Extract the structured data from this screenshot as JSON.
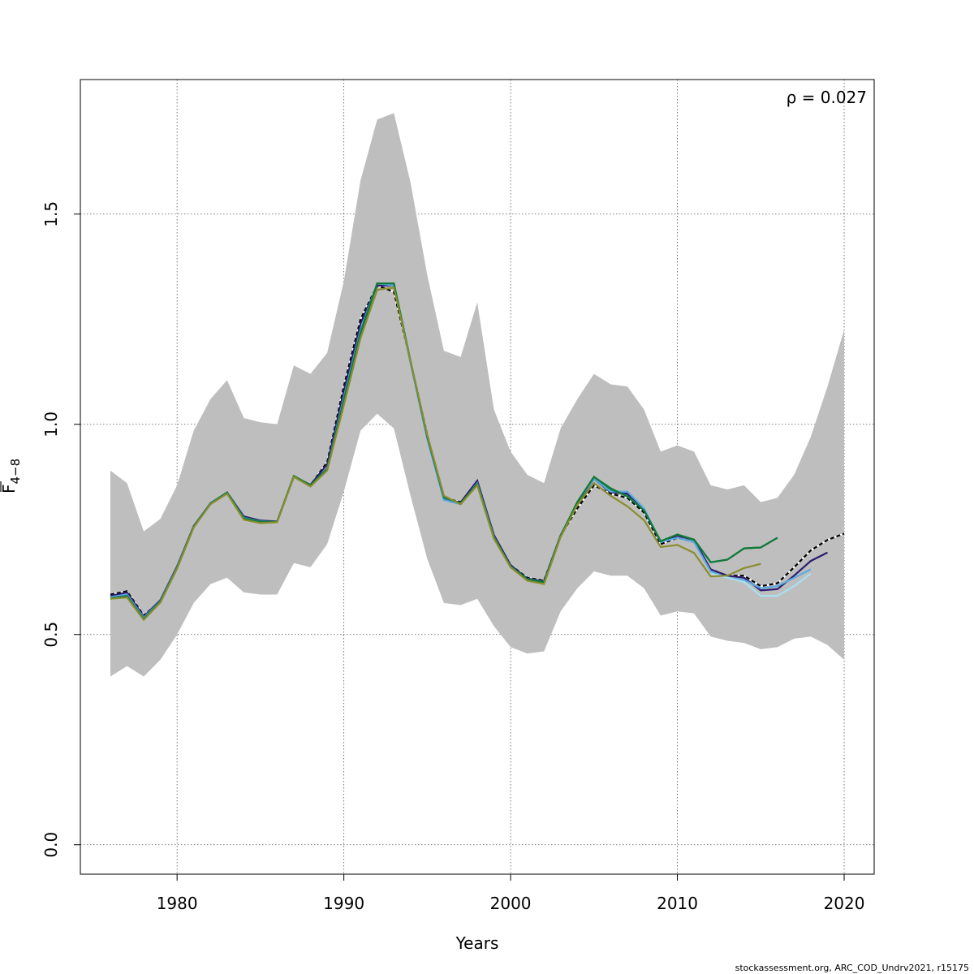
{
  "chart_data": {
    "type": "line",
    "xlabel": "Years",
    "ylabel": {
      "base": "F",
      "subscript": "4−8"
    },
    "annotation": "ρ = 0.027",
    "xlim": [
      1974.2,
      2021.8
    ],
    "ylim": [
      -0.07,
      1.82
    ],
    "x_ticks": [
      1980,
      1990,
      2000,
      2010,
      2020
    ],
    "y_ticks": [
      0.0,
      0.5,
      1.0,
      1.5
    ],
    "y_tick_labels": [
      "0.0",
      "0.5",
      "1.0",
      "1.5"
    ],
    "grid": true,
    "band_color": "#bebebe",
    "band": {
      "x": [
        1976,
        1977,
        1978,
        1979,
        1980,
        1981,
        1982,
        1983,
        1984,
        1985,
        1986,
        1987,
        1988,
        1989,
        1990,
        1991,
        1992,
        1993,
        1994,
        1995,
        1996,
        1997,
        1998,
        1999,
        2000,
        2001,
        2002,
        2003,
        2004,
        2005,
        2006,
        2007,
        2008,
        2009,
        2010,
        2011,
        2012,
        2013,
        2014,
        2015,
        2016,
        2017,
        2018,
        2019,
        2020
      ],
      "lower": [
        0.4,
        0.425,
        0.4,
        0.44,
        0.5,
        0.575,
        0.62,
        0.635,
        0.6,
        0.595,
        0.595,
        0.67,
        0.66,
        0.715,
        0.84,
        0.985,
        1.025,
        0.99,
        0.83,
        0.68,
        0.575,
        0.57,
        0.585,
        0.52,
        0.47,
        0.455,
        0.46,
        0.555,
        0.61,
        0.65,
        0.64,
        0.64,
        0.61,
        0.545,
        0.555,
        0.55,
        0.495,
        0.485,
        0.48,
        0.465,
        0.47,
        0.49,
        0.495,
        0.475,
        0.44
      ],
      "upper": [
        0.89,
        0.86,
        0.745,
        0.775,
        0.855,
        0.985,
        1.06,
        1.105,
        1.015,
        1.005,
        1.0,
        1.14,
        1.12,
        1.17,
        1.34,
        1.58,
        1.725,
        1.74,
        1.575,
        1.355,
        1.175,
        1.16,
        1.29,
        1.035,
        0.935,
        0.88,
        0.86,
        0.99,
        1.06,
        1.12,
        1.095,
        1.09,
        1.035,
        0.935,
        0.95,
        0.935,
        0.855,
        0.845,
        0.855,
        0.815,
        0.825,
        0.88,
        0.97,
        1.09,
        1.225
      ]
    },
    "series": [
      {
        "color": "#000000",
        "dashed": true,
        "x": [
          1976,
          1977,
          1978,
          1979,
          1980,
          1981,
          1982,
          1983,
          1984,
          1985,
          1986,
          1987,
          1988,
          1989,
          1990,
          1991,
          1992,
          1993,
          1994,
          1995,
          1996,
          1997,
          1998,
          1999,
          2000,
          2001,
          2002,
          2003,
          2004,
          2005,
          2006,
          2007,
          2008,
          2009,
          2010,
          2011,
          2012,
          2013,
          2014,
          2015,
          2016,
          2017,
          2018,
          2019,
          2020
        ],
        "y": [
          0.595,
          0.603,
          0.545,
          0.58,
          0.66,
          0.757,
          0.81,
          0.838,
          0.78,
          0.77,
          0.768,
          0.875,
          0.855,
          0.91,
          1.09,
          1.25,
          1.33,
          1.315,
          1.15,
          0.975,
          0.825,
          0.815,
          0.86,
          0.735,
          0.665,
          0.635,
          0.628,
          0.735,
          0.8,
          0.855,
          0.835,
          0.825,
          0.79,
          0.715,
          0.73,
          0.72,
          0.655,
          0.64,
          0.64,
          0.615,
          0.622,
          0.66,
          0.7,
          0.725,
          0.74
        ]
      },
      {
        "color": "#2c1b6e",
        "dashed": false,
        "x": [
          1976,
          1977,
          1978,
          1979,
          1980,
          1981,
          1982,
          1983,
          1984,
          1985,
          1986,
          1987,
          1988,
          1989,
          1990,
          1991,
          1992,
          1993,
          1994,
          1995,
          1996,
          1997,
          1998,
          1999,
          2000,
          2001,
          2002,
          2003,
          2004,
          2005,
          2006,
          2007,
          2008,
          2009,
          2010,
          2011,
          2012,
          2013,
          2014,
          2015,
          2016,
          2017,
          2018,
          2019
        ],
        "y": [
          0.592,
          0.6,
          0.543,
          0.582,
          0.662,
          0.758,
          0.812,
          0.838,
          0.781,
          0.771,
          0.769,
          0.876,
          0.856,
          0.905,
          1.08,
          1.24,
          1.33,
          1.33,
          1.15,
          0.97,
          0.822,
          0.814,
          0.866,
          0.737,
          0.665,
          0.633,
          0.627,
          0.736,
          0.812,
          0.87,
          0.838,
          0.835,
          0.795,
          0.72,
          0.735,
          0.725,
          0.655,
          0.64,
          0.635,
          0.605,
          0.608,
          0.64,
          0.675,
          0.695
        ]
      },
      {
        "color": "#5ba9e0",
        "dashed": false,
        "x": [
          1976,
          1977,
          1978,
          1979,
          1980,
          1981,
          1982,
          1983,
          1984,
          1985,
          1986,
          1987,
          1988,
          1989,
          1990,
          1991,
          1992,
          1993,
          1994,
          1995,
          1996,
          1997,
          1998,
          1999,
          2000,
          2001,
          2002,
          2003,
          2004,
          2005,
          2006,
          2007,
          2008,
          2009,
          2010,
          2011,
          2012,
          2013,
          2014,
          2015,
          2016,
          2017,
          2018
        ],
        "y": [
          0.589,
          0.595,
          0.54,
          0.58,
          0.66,
          0.756,
          0.81,
          0.836,
          0.778,
          0.769,
          0.768,
          0.875,
          0.854,
          0.895,
          1.065,
          1.225,
          1.335,
          1.33,
          1.145,
          0.965,
          0.82,
          0.81,
          0.86,
          0.733,
          0.66,
          0.63,
          0.625,
          0.735,
          0.815,
          0.87,
          0.84,
          0.84,
          0.8,
          0.72,
          0.73,
          0.72,
          0.65,
          0.635,
          0.63,
          0.61,
          0.615,
          0.635,
          0.655
        ]
      },
      {
        "color": "#a9dff0",
        "dashed": false,
        "x": [
          2012,
          2013,
          2014,
          2015,
          2016,
          2017,
          2018
        ],
        "y": [
          0.645,
          0.635,
          0.625,
          0.592,
          0.592,
          0.615,
          0.645
        ]
      },
      {
        "color": "#1a7f74",
        "dashed": false,
        "x": [
          1976,
          1977,
          1978,
          1979,
          1980,
          1981,
          1982,
          1983,
          1984,
          1985,
          1986,
          1987,
          1988,
          1989,
          1990,
          1991,
          1992,
          1993,
          1994,
          1995,
          1996,
          1997,
          1998,
          1999,
          2000,
          2001,
          2002,
          2003,
          2004,
          2005,
          2006,
          2007,
          2008,
          2009,
          2010,
          2011,
          2012,
          2013,
          2014,
          2015,
          2016
        ],
        "y": [
          0.587,
          0.592,
          0.538,
          0.579,
          0.66,
          0.757,
          0.812,
          0.838,
          0.778,
          0.769,
          0.768,
          0.877,
          0.855,
          0.895,
          1.06,
          1.22,
          1.335,
          1.335,
          1.15,
          0.97,
          0.825,
          0.812,
          0.858,
          0.732,
          0.662,
          0.632,
          0.625,
          0.735,
          0.815,
          0.875,
          0.845,
          0.83,
          0.795,
          0.722,
          0.738,
          0.725,
          0.672,
          0.678,
          0.705,
          0.707,
          0.73
        ]
      },
      {
        "color": "#117a35",
        "dashed": false,
        "x": [
          1976,
          1977,
          1978,
          1979,
          1980,
          1981,
          1982,
          1983,
          1984,
          1985,
          1986,
          1987,
          1988,
          1989,
          1990,
          1991,
          1992,
          1993,
          1994,
          1995,
          1996,
          1997,
          1998,
          1999,
          2000,
          2001,
          2002,
          2003,
          2004,
          2005,
          2006,
          2007,
          2008,
          2009,
          2010,
          2011,
          2012,
          2013,
          2014,
          2015,
          2016
        ],
        "y": [
          0.585,
          0.59,
          0.536,
          0.578,
          0.658,
          0.756,
          0.811,
          0.837,
          0.775,
          0.767,
          0.768,
          0.877,
          0.855,
          0.893,
          1.055,
          1.215,
          1.335,
          1.335,
          1.15,
          0.972,
          0.828,
          0.812,
          0.857,
          0.731,
          0.661,
          0.631,
          0.624,
          0.734,
          0.815,
          0.875,
          0.848,
          0.828,
          0.795,
          0.722,
          0.738,
          0.726,
          0.672,
          0.678,
          0.705,
          0.707,
          0.73
        ]
      },
      {
        "color": "#8a8d2e",
        "dashed": false,
        "x": [
          1976,
          1977,
          1978,
          1979,
          1980,
          1981,
          1982,
          1983,
          1984,
          1985,
          1986,
          1987,
          1988,
          1989,
          1990,
          1991,
          1992,
          1993,
          1994,
          1995,
          1996,
          1997,
          1998,
          1999,
          2000,
          2001,
          2002,
          2003,
          2004,
          2005,
          2006,
          2007,
          2008,
          2009,
          2010,
          2011,
          2012,
          2013,
          2014,
          2015
        ],
        "y": [
          0.585,
          0.588,
          0.535,
          0.576,
          0.657,
          0.755,
          0.81,
          0.835,
          0.773,
          0.765,
          0.767,
          0.875,
          0.852,
          0.89,
          1.045,
          1.205,
          1.32,
          1.325,
          1.15,
          0.975,
          0.83,
          0.81,
          0.855,
          0.728,
          0.66,
          0.628,
          0.62,
          0.732,
          0.808,
          0.86,
          0.83,
          0.805,
          0.772,
          0.708,
          0.713,
          0.694,
          0.638,
          0.64,
          0.658,
          0.668
        ]
      }
    ]
  },
  "footer": "stockassessment.org, ARC_COD_Undrv2021, r15175"
}
